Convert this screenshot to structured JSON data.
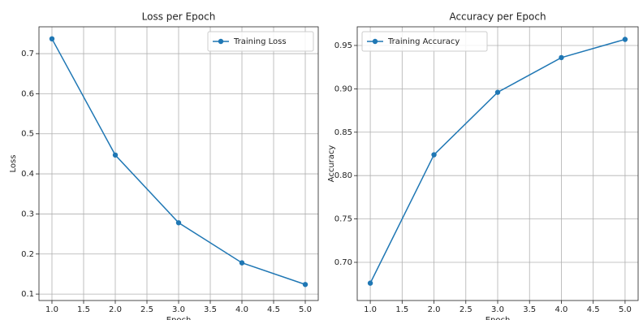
{
  "chart_data": [
    {
      "type": "line",
      "title": "Loss per Epoch",
      "x_label": "Epoch",
      "y_label": "Loss",
      "x": [
        1,
        2,
        3,
        4,
        5
      ],
      "series": [
        {
          "name": "Training Loss",
          "color": "#1f77b4",
          "values": [
            0.737,
            0.447,
            0.278,
            0.178,
            0.124
          ]
        }
      ],
      "xlim": [
        0.795,
        5.205
      ],
      "xticks": [
        {
          "value": 1,
          "label": "1.0"
        },
        1.5,
        {
          "value": 2,
          "label": "2.0"
        },
        2.5,
        {
          "value": 3,
          "label": "3.0"
        },
        3.5,
        {
          "value": 4,
          "label": "4.0"
        },
        4.5,
        {
          "value": 5,
          "label": "5.0"
        }
      ],
      "ylim": [
        0.084,
        0.767
      ],
      "yticks": [
        0.1,
        0.2,
        0.3,
        0.4,
        0.5,
        0.6,
        0.7
      ],
      "grid": true,
      "legend": "upper right"
    },
    {
      "type": "line",
      "title": "Accuracy per Epoch",
      "x_label": "Epoch",
      "y_label": "Accuracy",
      "x": [
        1,
        2,
        3,
        4,
        5
      ],
      "series": [
        {
          "name": "Training Accuracy",
          "color": "#1f77b4",
          "values": [
            0.676,
            0.824,
            0.896,
            0.936,
            0.957
          ]
        }
      ],
      "xlim": [
        0.795,
        5.205
      ],
      "xticks": [
        {
          "value": 1,
          "label": "1.0"
        },
        1.5,
        {
          "value": 2,
          "label": "2.0"
        },
        2.5,
        {
          "value": 3,
          "label": "3.0"
        },
        3.5,
        {
          "value": 4,
          "label": "4.0"
        },
        4.5,
        {
          "value": 5,
          "label": "5.0"
        }
      ],
      "ylim": [
        0.656,
        0.9715
      ],
      "yticks": [
        {
          "value": 0.7,
          "label": "0.70"
        },
        0.75,
        {
          "value": 0.8,
          "label": "0.80"
        },
        0.85,
        {
          "value": 0.9,
          "label": "0.90"
        },
        0.95
      ],
      "grid": true,
      "legend": "upper left"
    }
  ]
}
